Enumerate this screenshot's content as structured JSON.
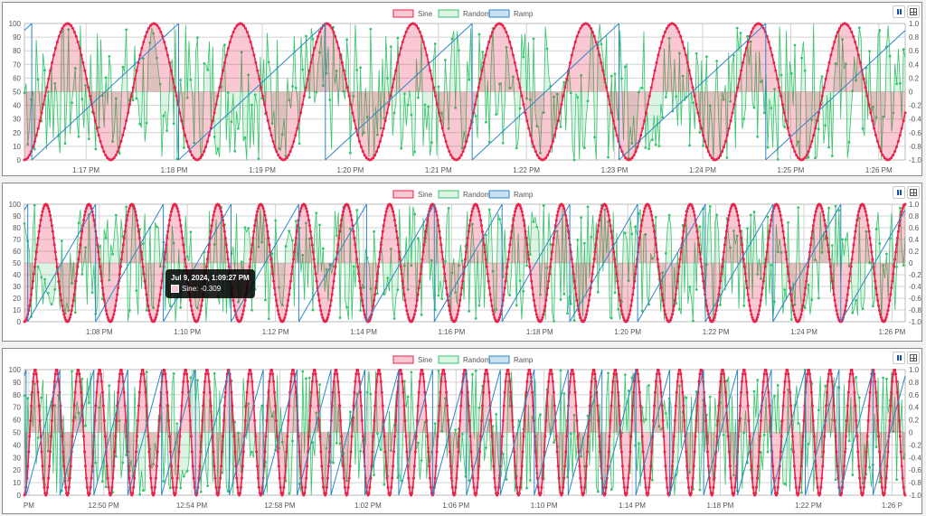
{
  "colors": {
    "sine": "#e8234b",
    "sine_fill": "rgba(232,35,75,0.25)",
    "random": "#35c46a",
    "random_fill": "rgba(53,196,106,0.18)",
    "ramp": "#2c86c8",
    "ramp_fill": "rgba(44,134,200,0.25)",
    "grid": "#d3d3d3"
  },
  "controls": {
    "pause_icon": "pause-icon",
    "table_icon": "table-icon"
  },
  "tooltip": {
    "title": "Jul 9, 2024, 1:09:27 PM",
    "label": "Sine: -0.309"
  },
  "chart_data": [
    {
      "type": "line",
      "series": [
        {
          "name": "Sine",
          "fill": true,
          "y_axis": "right",
          "periods": 10.2,
          "phase_deg": 270
        },
        {
          "name": "Random",
          "fill": true,
          "y_axis": "left",
          "range": [
            0,
            100
          ]
        },
        {
          "name": "Ramp",
          "fill": false,
          "y_axis": "right",
          "periods": 6,
          "range": [
            -1,
            1
          ]
        }
      ],
      "left_axis": {
        "min": 0,
        "max": 100,
        "ticks": [
          "0",
          "10",
          "20",
          "30",
          "40",
          "50",
          "60",
          "70",
          "80",
          "90",
          "100"
        ]
      },
      "right_axis": {
        "min": -1,
        "max": 1,
        "ticks": [
          "-1.0",
          "-0.8",
          "-0.6",
          "-0.4",
          "-0.2",
          "0",
          "0.2",
          "0.4",
          "0.6",
          "0.8",
          "1.0"
        ]
      },
      "x_ticks": [
        "1:17 PM",
        "1:18 PM",
        "1:19 PM",
        "1:20 PM",
        "1:21 PM",
        "1:22 PM",
        "1:23 PM",
        "1:24 PM",
        "1:25 PM",
        "1:26 PM"
      ],
      "x_tick_positions": [
        0.07,
        0.17,
        0.27,
        0.37,
        0.47,
        0.57,
        0.67,
        0.77,
        0.87,
        0.97
      ],
      "legend_position": "top-center"
    },
    {
      "type": "line",
      "series": [
        {
          "name": "Sine",
          "fill": true,
          "y_axis": "right",
          "periods": 20.5,
          "phase_deg": 270
        },
        {
          "name": "Random",
          "fill": true,
          "y_axis": "left",
          "range": [
            0,
            100
          ]
        },
        {
          "name": "Ramp",
          "fill": false,
          "y_axis": "right",
          "periods": 13,
          "range": [
            -1,
            1
          ]
        }
      ],
      "left_axis": {
        "min": 0,
        "max": 100,
        "ticks": [
          "0",
          "10",
          "20",
          "30",
          "40",
          "50",
          "60",
          "70",
          "80",
          "90",
          "100"
        ]
      },
      "right_axis": {
        "min": -1,
        "max": 1,
        "ticks": [
          "-1.0",
          "-0.8",
          "-0.6",
          "-0.4",
          "-0.2",
          "0",
          "0.2",
          "0.4",
          "0.6",
          "0.8",
          "1.0"
        ]
      },
      "x_ticks": [
        "1:08 PM",
        "1:10 PM",
        "1:12 PM",
        "1:14 PM",
        "1:16 PM",
        "1:18 PM",
        "1:20 PM",
        "1:22 PM",
        "1:24 PM",
        "1:26 PM"
      ],
      "x_tick_positions": [
        0.085,
        0.185,
        0.285,
        0.385,
        0.485,
        0.585,
        0.685,
        0.785,
        0.885,
        0.985
      ],
      "legend_position": "top-center"
    },
    {
      "type": "line",
      "series": [
        {
          "name": "Sine",
          "fill": true,
          "y_axis": "right",
          "periods": 41,
          "phase_deg": 270
        },
        {
          "name": "Random",
          "fill": true,
          "y_axis": "left",
          "range": [
            0,
            100
          ]
        },
        {
          "name": "Ramp",
          "fill": false,
          "y_axis": "right",
          "periods": 26,
          "range": [
            -1,
            1
          ]
        }
      ],
      "left_axis": {
        "min": 0,
        "max": 100,
        "ticks": [
          "0",
          "10",
          "20",
          "30",
          "40",
          "50",
          "60",
          "70",
          "80",
          "90",
          "100"
        ]
      },
      "right_axis": {
        "min": -1,
        "max": 1,
        "ticks": [
          "-1.0",
          "-0.8",
          "-0.6",
          "-0.4",
          "-0.2",
          "0",
          "0.2",
          "0.4",
          "0.6",
          "0.8",
          "1.0"
        ]
      },
      "x_ticks": [
        "PM",
        "12:50 PM",
        "12:54 PM",
        "12:58 PM",
        "1:02 PM",
        "1:06 PM",
        "1:10 PM",
        "1:14 PM",
        "1:18 PM",
        "1:22 PM",
        "1:26 P"
      ],
      "x_tick_positions": [
        0.005,
        0.09,
        0.19,
        0.29,
        0.39,
        0.49,
        0.59,
        0.69,
        0.79,
        0.89,
        0.985
      ],
      "legend_position": "top-center"
    }
  ]
}
